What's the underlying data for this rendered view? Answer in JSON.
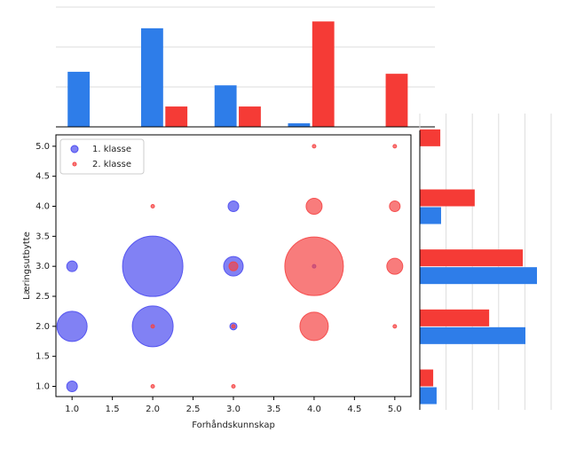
{
  "chart_data": [
    {
      "type": "scatter",
      "xlabel": "Forhåndskunnskap",
      "ylabel": "Læringsutbytte",
      "xlim": [
        0.8,
        5.2
      ],
      "ylim": [
        0.83,
        5.19
      ],
      "xticks": [
        {
          "value": 1,
          "label": "1.0"
        },
        {
          "value": 1.5,
          "label": "1.5"
        },
        {
          "value": 2,
          "label": "2.0"
        },
        {
          "value": 2.5,
          "label": "2.5"
        },
        {
          "value": 3,
          "label": "3.0"
        },
        {
          "value": 3.5,
          "label": "3.5"
        },
        {
          "value": 4,
          "label": "4.0"
        },
        {
          "value": 4.5,
          "label": "4.5"
        },
        {
          "value": 5,
          "label": "5.0"
        }
      ],
      "yticks": [
        {
          "value": 1,
          "label": "1.0"
        },
        {
          "value": 1.5,
          "label": "1.5"
        },
        {
          "value": 2,
          "label": "2.0"
        },
        {
          "value": 2.5,
          "label": "2.5"
        },
        {
          "value": 3,
          "label": "3.0"
        },
        {
          "value": 3.5,
          "label": "3.5"
        },
        {
          "value": 4,
          "label": "4.0"
        },
        {
          "value": 4.5,
          "label": "4.5"
        },
        {
          "value": 5,
          "label": "5.0"
        }
      ],
      "legend": "upper left",
      "series": [
        {
          "name": "1. klasse",
          "color": "#4b4bf0",
          "x": [
            1,
            1,
            1,
            2,
            2,
            3,
            3,
            3,
            4
          ],
          "y": [
            1,
            2,
            3,
            2,
            3,
            2,
            3,
            4,
            3
          ],
          "sizes": [
            36,
            289,
            36,
            529,
            1156,
            16,
            121,
            36,
            4
          ]
        },
        {
          "name": "2. klasse",
          "color": "#f54545",
          "x": [
            2,
            2,
            2,
            3,
            3,
            3,
            4,
            4,
            4,
            4,
            5,
            5,
            5,
            5
          ],
          "y": [
            1,
            2,
            4,
            1,
            2,
            3,
            2,
            3,
            4,
            5,
            2,
            3,
            4,
            5
          ],
          "sizes": [
            4,
            4,
            4,
            4,
            4,
            25,
            256,
            1089,
            81,
            4,
            4,
            81,
            36,
            4
          ]
        }
      ]
    },
    {
      "type": "bar",
      "categories": [
        1,
        2,
        3,
        4,
        5
      ],
      "xlim": [
        0.84,
        6.0
      ],
      "ylim": [
        0,
        3
      ],
      "yticks": [
        0,
        1,
        2,
        3
      ],
      "grid": true,
      "series": [
        {
          "color": "#2e7de9",
          "values": [
            1.38,
            2.47,
            1.04,
            0.09,
            0
          ]
        },
        {
          "color": "#f53b36",
          "values": [
            0,
            0.51,
            0.51,
            2.64,
            1.33
          ]
        }
      ]
    },
    {
      "type": "barh",
      "categories": [
        1,
        2,
        3,
        4,
        5
      ],
      "xlim": [
        0,
        5
      ],
      "xticks": [
        0,
        1,
        2,
        3,
        4,
        5
      ],
      "ylim": [
        0.83,
        5.19
      ],
      "grid": true,
      "series": [
        {
          "color": "#2e7de9",
          "values": [
            0.64,
            4.02,
            4.46,
            0.81,
            0
          ]
        },
        {
          "color": "#f53b36",
          "values": [
            0.51,
            2.64,
            3.92,
            2.09,
            0.78
          ]
        }
      ]
    }
  ]
}
